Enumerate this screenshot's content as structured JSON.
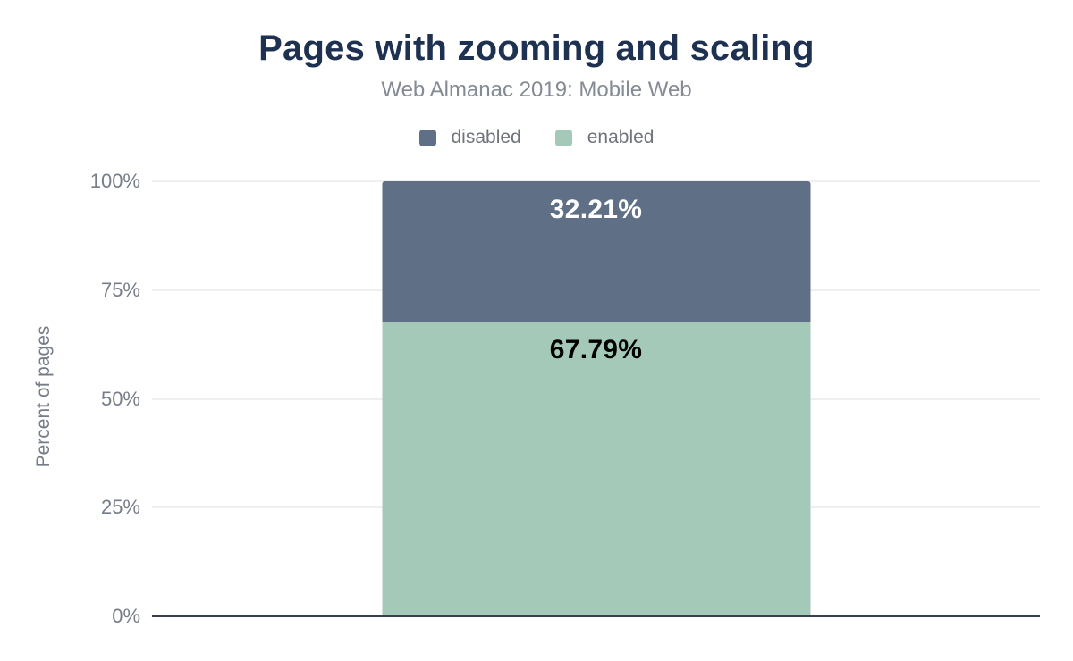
{
  "chart_data": {
    "type": "bar",
    "stacked": true,
    "title": "Pages with zooming and scaling",
    "subtitle": "Web Almanac 2019: Mobile Web",
    "categories": [
      ""
    ],
    "series": [
      {
        "name": "disabled",
        "values": [
          32.21
        ],
        "data_label": "32.21%",
        "color": "#5f7086",
        "data_label_color": "#ffffff"
      },
      {
        "name": "enabled",
        "values": [
          67.79
        ],
        "data_label": "67.79%",
        "color": "#a5c9b8",
        "data_label_color": "#000000"
      }
    ],
    "xlabel": "",
    "ylabel": "Percent of pages",
    "ylim": [
      0,
      100
    ],
    "yticks": [
      "100%",
      "75%",
      "50%",
      "25%",
      "0%"
    ],
    "grid": true,
    "legend_position": "top"
  },
  "colors": {
    "title_text": "#1e3150",
    "subtitle_text": "#858b94",
    "axis_text": "#767d89",
    "gridline": "#efeff0",
    "baseline": "#39404d",
    "background": "#ffffff"
  }
}
